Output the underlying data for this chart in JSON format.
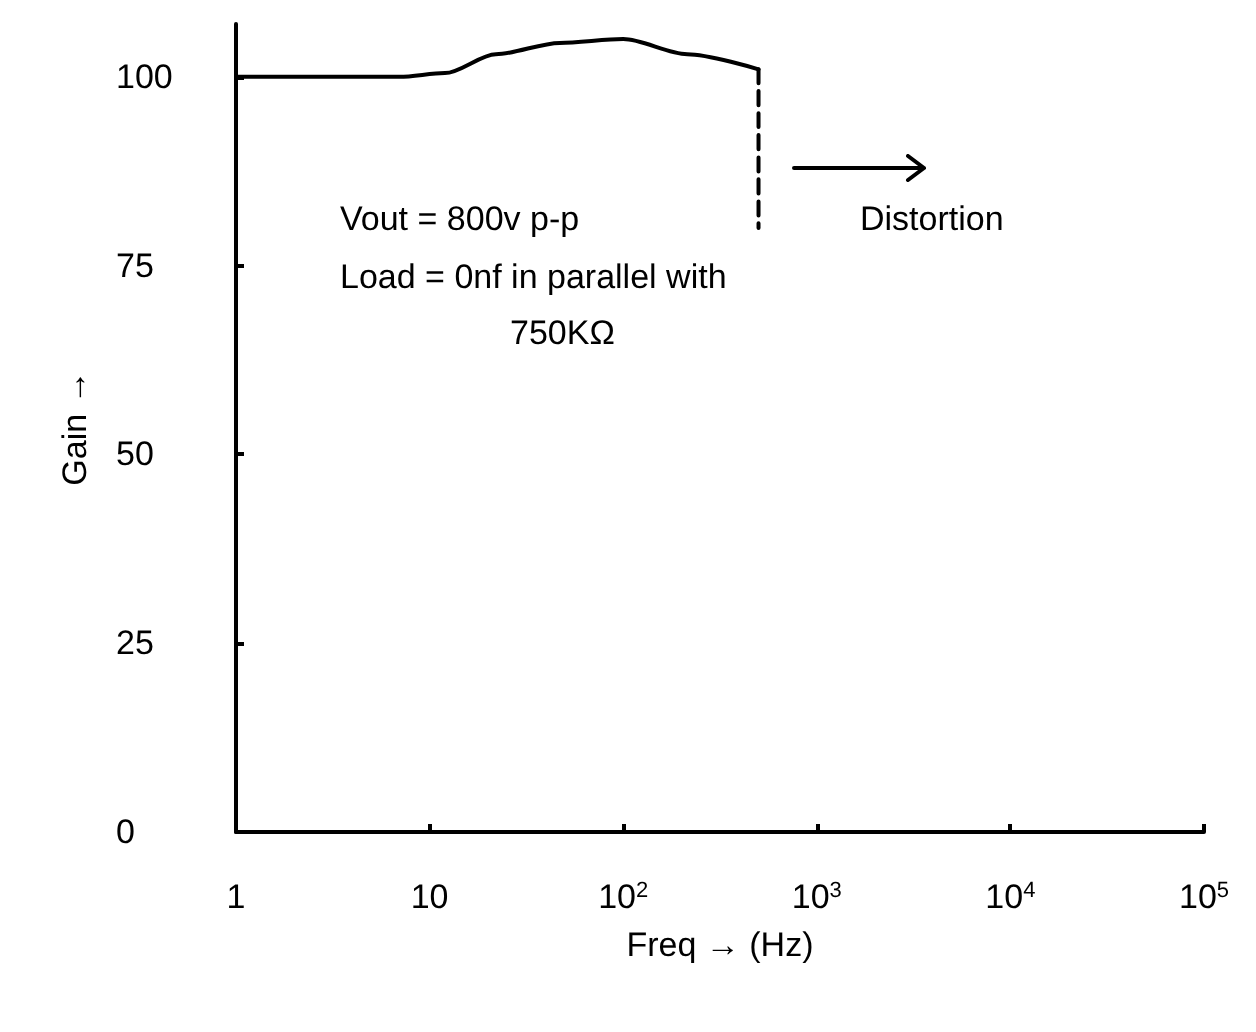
{
  "chart_data": {
    "type": "line",
    "xlabel": "Freq → (Hz)",
    "ylabel": "Gain →",
    "log": "x",
    "xlim": [
      1,
      100000
    ],
    "xticks": [
      1,
      10,
      {
        "value": 100,
        "label": "10$^{2}$"
      },
      {
        "value": 1000,
        "label": "10$^{3}$"
      },
      {
        "value": 10000,
        "label": "10$^{4}$"
      },
      {
        "value": 100000,
        "label": "10$^{5}$"
      }
    ],
    "ylim": [
      0,
      107
    ],
    "yticks": [
      0,
      25,
      50,
      75,
      100
    ],
    "grid": false,
    "marker": "none",
    "series": [
      {
        "color": "#000000",
        "x": [
          1,
          7,
          12,
          22,
          47,
          100,
          214,
          500
        ],
        "values": [
          100,
          100,
          100.5,
          103,
          104.5,
          105,
          103,
          101
        ],
        "line_style": "solid"
      },
      {
        "color": "#000000",
        "x": [
          500,
          500
        ],
        "values": [
          101,
          80
        ],
        "line_style": "dashed"
      }
    ],
    "annotations": [
      "Vout = 800v p-p",
      "Load = 0nf in parallel with",
      "750KΩ",
      "Distortion"
    ]
  }
}
